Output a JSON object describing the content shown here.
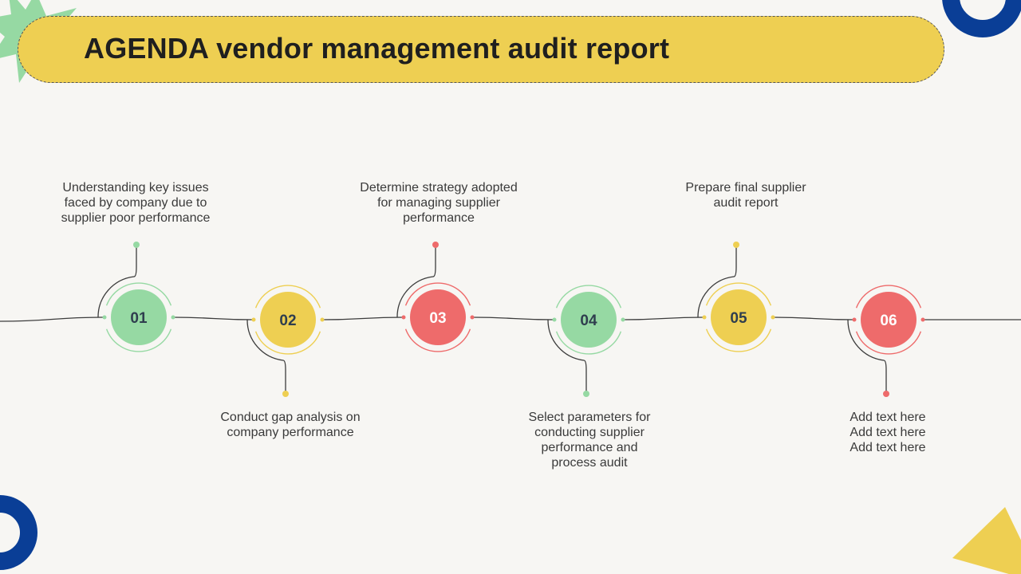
{
  "title": "AGENDA vendor management audit report",
  "colors": {
    "background": "#f7f6f3",
    "title_bar": "#eecf52",
    "green": "#96d9a3",
    "yellow": "#eecf52",
    "red": "#ee6b6b",
    "navy": "#0a3e96",
    "line": "#3c3c3c"
  },
  "steps": [
    {
      "number": "01",
      "text": "Understanding key issues\nfaced by company due to\nsupplier poor performance",
      "color": "green",
      "label_side": "top"
    },
    {
      "number": "02",
      "text": "Conduct gap analysis on\ncompany performance",
      "color": "yellow",
      "label_side": "bottom"
    },
    {
      "number": "03",
      "text": "Determine strategy adopted\nfor managing supplier\nperformance",
      "color": "red",
      "label_side": "top"
    },
    {
      "number": "04",
      "text": "Select parameters for\nconducting supplier\nperformance and\nprocess audit",
      "color": "green",
      "label_side": "bottom"
    },
    {
      "number": "05",
      "text": "Prepare final supplier\naudit report",
      "color": "yellow",
      "label_side": "top"
    },
    {
      "number": "06",
      "text": "Add text here\nAdd text here\nAdd text here",
      "color": "red",
      "label_side": "bottom"
    }
  ]
}
